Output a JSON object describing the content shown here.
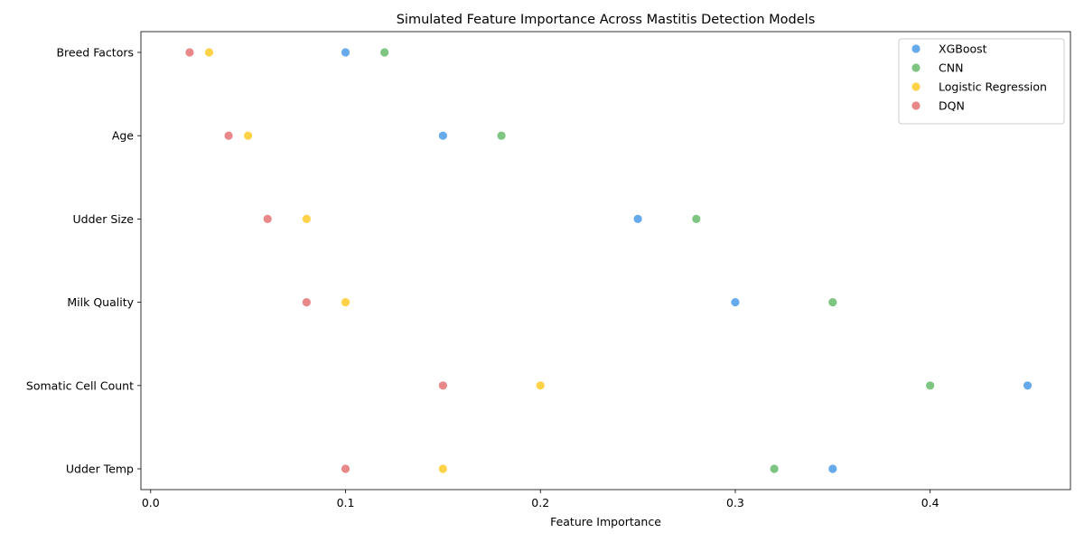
{
  "chart_data": {
    "type": "scatter",
    "title": "Simulated Feature Importance Across Mastitis Detection Models",
    "xlabel": "Feature Importance",
    "ylabel": "",
    "xlim": [
      -0.005,
      0.472
    ],
    "xticks": [
      0.0,
      0.1,
      0.2,
      0.3,
      0.4
    ],
    "xtick_labels": [
      "0.0",
      "0.1",
      "0.2",
      "0.3",
      "0.4"
    ],
    "categories": [
      "Udder Temp",
      "Somatic Cell Count",
      "Milk Quality",
      "Udder Size",
      "Age",
      "Breed Factors"
    ],
    "grid": false,
    "legend_position": "top-right",
    "series": [
      {
        "name": "XGBoost",
        "color": "#4C9BE8",
        "values": [
          0.35,
          0.45,
          0.3,
          0.25,
          0.15,
          0.1
        ]
      },
      {
        "name": "CNN",
        "color": "#66BB6A",
        "values": [
          0.32,
          0.4,
          0.35,
          0.28,
          0.18,
          0.12
        ]
      },
      {
        "name": "Logistic Regression",
        "color": "#FFCA28",
        "values": [
          0.15,
          0.2,
          0.1,
          0.08,
          0.05,
          0.03
        ]
      },
      {
        "name": "DQN",
        "color": "#E57373",
        "values": [
          0.1,
          0.15,
          0.08,
          0.06,
          0.04,
          0.02
        ]
      }
    ]
  }
}
